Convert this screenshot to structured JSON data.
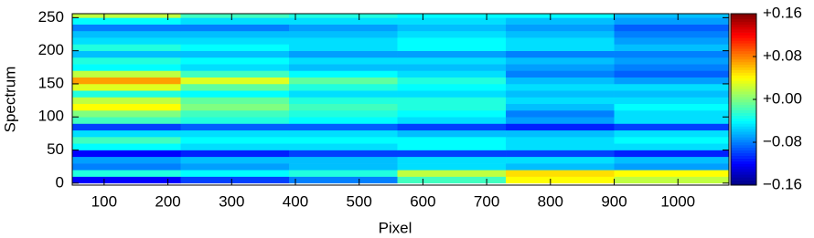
{
  "chart_data": {
    "type": "heatmap",
    "xlabel": "Pixel",
    "ylabel": "Spectrum",
    "xlim": [
      50,
      1080
    ],
    "ylim": [
      -3,
      256
    ],
    "xticks": [
      100,
      200,
      300,
      400,
      500,
      600,
      700,
      800,
      900,
      1000
    ],
    "yticks": [
      0,
      50,
      100,
      150,
      200,
      250
    ],
    "clim": [
      -0.16,
      0.16
    ],
    "cticks": [
      {
        "value": 0.16,
        "label": "+0.16"
      },
      {
        "value": 0.08,
        "label": "+0.08"
      },
      {
        "value": 0,
        "label": "+0.00"
      },
      {
        "value": -0.08,
        "label": "−0.08"
      },
      {
        "value": -0.16,
        "label": "−0.16"
      }
    ],
    "colormap": "jet",
    "x_bins": [
      50,
      220,
      390,
      560,
      730,
      900,
      1080
    ],
    "y_bins": [
      0,
      10,
      20,
      30,
      40,
      50,
      60,
      70,
      80,
      90,
      100,
      110,
      120,
      130,
      140,
      150,
      160,
      170,
      180,
      190,
      200,
      210,
      220,
      230,
      240,
      250,
      256
    ],
    "z": [
      [
        -0.12,
        -0.1,
        -0.08,
        -0.02,
        0.04,
        0.02
      ],
      [
        -0.03,
        -0.04,
        -0.03,
        0.02,
        0.05,
        0.04
      ],
      [
        -0.08,
        -0.07,
        -0.06,
        -0.05,
        -0.06,
        -0.07
      ],
      [
        -0.07,
        -0.06,
        -0.06,
        -0.05,
        -0.05,
        -0.06
      ],
      [
        -0.12,
        -0.11,
        -0.1,
        -0.1,
        -0.1,
        -0.11
      ],
      [
        -0.04,
        -0.05,
        -0.05,
        -0.04,
        -0.05,
        -0.05
      ],
      [
        -0.02,
        -0.04,
        -0.04,
        -0.04,
        -0.05,
        -0.04
      ],
      [
        -0.05,
        -0.05,
        -0.05,
        -0.06,
        -0.06,
        -0.05
      ],
      [
        -0.1,
        -0.09,
        -0.09,
        -0.1,
        -0.11,
        -0.1
      ],
      [
        -0.02,
        -0.03,
        -0.04,
        -0.05,
        -0.07,
        -0.05
      ],
      [
        0.0,
        -0.02,
        -0.03,
        -0.04,
        -0.08,
        -0.05
      ],
      [
        0.04,
        0.0,
        -0.02,
        -0.03,
        -0.06,
        -0.04
      ],
      [
        0.02,
        -0.01,
        -0.03,
        -0.03,
        -0.05,
        -0.05
      ],
      [
        -0.03,
        -0.04,
        -0.05,
        -0.05,
        -0.06,
        -0.06
      ],
      [
        0.03,
        -0.01,
        -0.03,
        -0.04,
        -0.05,
        -0.05
      ],
      [
        0.07,
        0.03,
        -0.01,
        -0.03,
        -0.06,
        -0.07
      ],
      [
        0.02,
        -0.02,
        -0.04,
        -0.05,
        -0.08,
        -0.09
      ],
      [
        -0.04,
        -0.05,
        -0.06,
        -0.06,
        -0.07,
        -0.08
      ],
      [
        -0.03,
        -0.04,
        -0.05,
        -0.05,
        -0.06,
        -0.07
      ],
      [
        -0.06,
        -0.06,
        -0.07,
        -0.07,
        -0.08,
        -0.08
      ],
      [
        -0.03,
        -0.04,
        -0.05,
        -0.04,
        -0.05,
        -0.06
      ],
      [
        -0.05,
        -0.05,
        -0.05,
        -0.04,
        -0.05,
        -0.07
      ],
      [
        -0.06,
        -0.06,
        -0.06,
        -0.05,
        -0.06,
        -0.08
      ],
      [
        -0.08,
        -0.08,
        -0.07,
        -0.06,
        -0.07,
        -0.09
      ],
      [
        -0.04,
        -0.05,
        -0.05,
        -0.05,
        -0.06,
        -0.07
      ],
      [
        0.02,
        -0.02,
        -0.03,
        -0.04,
        -0.04,
        -0.06
      ]
    ]
  }
}
